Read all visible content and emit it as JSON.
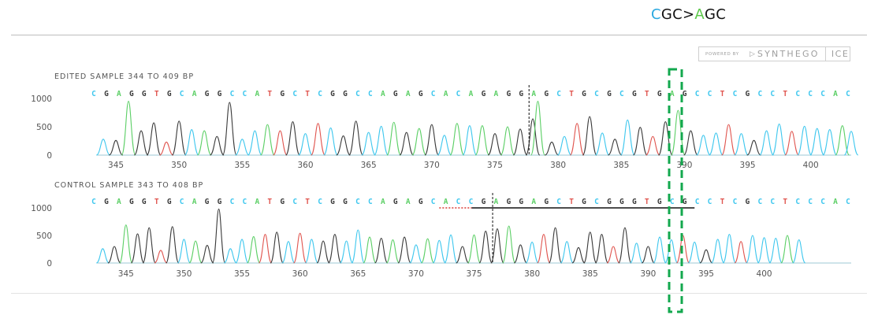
{
  "mutation_label": {
    "parts": [
      {
        "text": "C",
        "color": "#29a8e0"
      },
      {
        "text": "GC>",
        "color": "#111111"
      },
      {
        "text": "A",
        "color": "#5cc84a"
      },
      {
        "text": "GC",
        "color": "#111111"
      }
    ]
  },
  "badge": {
    "powered_by": "POWERED BY",
    "brand": "SYNTHEGO",
    "product": "ICE"
  },
  "colors": {
    "A": "#5ccf66",
    "C": "#3ec7ee",
    "G": "#3a3a3a",
    "T": "#e0554f",
    "highlight": "#13a84e"
  },
  "chart_data": [
    {
      "type": "line",
      "title": "EDITED SAMPLE 344 TO 409 BP",
      "sequence": [
        "C",
        "G",
        "A",
        "G",
        "G",
        "T",
        "G",
        "C",
        "A",
        "G",
        "G",
        "C",
        "C",
        "A",
        "T",
        "G",
        "C",
        "T",
        "C",
        "G",
        "G",
        "C",
        "C",
        "A",
        "G",
        "A",
        "G",
        "C",
        "A",
        "C",
        "A",
        "G",
        "A",
        "G",
        "G",
        "A",
        "G",
        "C",
        "T",
        "G",
        "C",
        "G",
        "C",
        "G",
        "T",
        "G",
        "A",
        "G",
        "C",
        "C",
        "T",
        "C",
        "G",
        "C",
        "C",
        "T",
        "C",
        "C",
        "C",
        "A",
        "C"
      ],
      "yticks": [
        0,
        500,
        1000
      ],
      "xticks": [
        345,
        350,
        355,
        360,
        365,
        370,
        375,
        380,
        385,
        390,
        395,
        400
      ],
      "xlim": [
        343.5,
        403.2
      ],
      "ylim": [
        0,
        1000
      ],
      "cut_site": 377.7,
      "peaks": [
        {
          "x": 344,
          "base": "C",
          "height": 280
        },
        {
          "x": 345,
          "base": "G",
          "height": 260
        },
        {
          "x": 346,
          "base": "A",
          "height": 950
        },
        {
          "x": 347,
          "base": "G",
          "height": 430
        },
        {
          "x": 348,
          "base": "G",
          "height": 570
        },
        {
          "x": 349,
          "base": "T",
          "height": 230
        },
        {
          "x": 350,
          "base": "G",
          "height": 600
        },
        {
          "x": 351,
          "base": "C",
          "height": 450
        },
        {
          "x": 352,
          "base": "A",
          "height": 430
        },
        {
          "x": 353,
          "base": "G",
          "height": 330
        },
        {
          "x": 354,
          "base": "G",
          "height": 930
        },
        {
          "x": 355,
          "base": "C",
          "height": 280
        },
        {
          "x": 356,
          "base": "C",
          "height": 430
        },
        {
          "x": 357,
          "base": "A",
          "height": 540
        },
        {
          "x": 358,
          "base": "T",
          "height": 430
        },
        {
          "x": 359,
          "base": "G",
          "height": 590
        },
        {
          "x": 360,
          "base": "C",
          "height": 380
        },
        {
          "x": 361,
          "base": "T",
          "height": 560
        },
        {
          "x": 362,
          "base": "C",
          "height": 480
        },
        {
          "x": 363,
          "base": "G",
          "height": 340
        },
        {
          "x": 364,
          "base": "G",
          "height": 600
        },
        {
          "x": 365,
          "base": "C",
          "height": 400
        },
        {
          "x": 366,
          "base": "C",
          "height": 510
        },
        {
          "x": 367,
          "base": "A",
          "height": 580
        },
        {
          "x": 368,
          "base": "G",
          "height": 400
        },
        {
          "x": 369,
          "base": "A",
          "height": 470
        },
        {
          "x": 370,
          "base": "G",
          "height": 540
        },
        {
          "x": 371,
          "base": "C",
          "height": 350
        },
        {
          "x": 372,
          "base": "A",
          "height": 560
        },
        {
          "x": 373,
          "base": "C",
          "height": 520
        },
        {
          "x": 374,
          "base": "A",
          "height": 520
        },
        {
          "x": 375,
          "base": "G",
          "height": 380
        },
        {
          "x": 376,
          "base": "A",
          "height": 500
        },
        {
          "x": 377,
          "base": "G",
          "height": 460
        },
        {
          "x": 378,
          "base": "G",
          "height": 640
        },
        {
          "x": 378.4,
          "base": "A",
          "height": 950
        },
        {
          "x": 379.5,
          "base": "G",
          "height": 230
        },
        {
          "x": 380.5,
          "base": "C",
          "height": 330
        },
        {
          "x": 381.5,
          "base": "T",
          "height": 560
        },
        {
          "x": 382.5,
          "base": "G",
          "height": 680
        },
        {
          "x": 383.5,
          "base": "C",
          "height": 390
        },
        {
          "x": 384.5,
          "base": "G",
          "height": 280
        },
        {
          "x": 385.5,
          "base": "C",
          "height": 620
        },
        {
          "x": 386.5,
          "base": "G",
          "height": 490
        },
        {
          "x": 387.5,
          "base": "T",
          "height": 330
        },
        {
          "x": 388.5,
          "base": "G",
          "height": 590
        },
        {
          "x": 389.5,
          "base": "A",
          "height": 790
        },
        {
          "x": 390.5,
          "base": "G",
          "height": 430
        },
        {
          "x": 391.5,
          "base": "C",
          "height": 350
        },
        {
          "x": 392.5,
          "base": "C",
          "height": 390
        },
        {
          "x": 393.5,
          "base": "T",
          "height": 540
        },
        {
          "x": 394.5,
          "base": "C",
          "height": 380
        },
        {
          "x": 395.5,
          "base": "G",
          "height": 260
        },
        {
          "x": 396.5,
          "base": "C",
          "height": 430
        },
        {
          "x": 397.5,
          "base": "C",
          "height": 550
        },
        {
          "x": 398.5,
          "base": "T",
          "height": 420
        },
        {
          "x": 399.5,
          "base": "C",
          "height": 510
        },
        {
          "x": 400.5,
          "base": "C",
          "height": 470
        },
        {
          "x": 401.5,
          "base": "C",
          "height": 450
        },
        {
          "x": 402.5,
          "base": "A",
          "height": 520
        },
        {
          "x": 403.2,
          "base": "C",
          "height": 420
        }
      ]
    },
    {
      "type": "line",
      "title": "CONTROL SAMPLE 343 TO 408 BP",
      "sequence": [
        "C",
        "G",
        "A",
        "G",
        "G",
        "T",
        "G",
        "C",
        "A",
        "G",
        "G",
        "C",
        "C",
        "A",
        "T",
        "G",
        "C",
        "T",
        "C",
        "G",
        "G",
        "C",
        "C",
        "A",
        "G",
        "A",
        "G",
        "C",
        "A",
        "C",
        "C",
        "G",
        "A",
        "G",
        "G",
        "A",
        "G",
        "C",
        "T",
        "G",
        "C",
        "G",
        "G",
        "G",
        "T",
        "G",
        "C",
        "G",
        "C",
        "C",
        "T",
        "C",
        "G",
        "C",
        "C",
        "T",
        "C",
        "C",
        "C",
        "A",
        "C"
      ],
      "yticks": [
        0,
        500,
        1000
      ],
      "xticks": [
        345,
        350,
        355,
        360,
        365,
        370,
        375,
        380,
        385,
        390,
        395,
        400
      ],
      "xlim": [
        342.5,
        407.5
      ],
      "ylim": [
        0,
        1000
      ],
      "cut_site": 376.6,
      "guide_start": 374.8,
      "guide_end": 394.0,
      "pam_start": 372.0,
      "pam_end": 374.8,
      "peaks": [
        {
          "x": 343,
          "base": "C",
          "height": 260
        },
        {
          "x": 344,
          "base": "G",
          "height": 300
        },
        {
          "x": 345,
          "base": "A",
          "height": 690
        },
        {
          "x": 346,
          "base": "G",
          "height": 530
        },
        {
          "x": 347,
          "base": "G",
          "height": 640
        },
        {
          "x": 348,
          "base": "T",
          "height": 230
        },
        {
          "x": 349,
          "base": "G",
          "height": 660
        },
        {
          "x": 350,
          "base": "C",
          "height": 430
        },
        {
          "x": 351,
          "base": "A",
          "height": 400
        },
        {
          "x": 352,
          "base": "G",
          "height": 320
        },
        {
          "x": 353,
          "base": "G",
          "height": 980
        },
        {
          "x": 354,
          "base": "C",
          "height": 260
        },
        {
          "x": 355,
          "base": "C",
          "height": 430
        },
        {
          "x": 356,
          "base": "A",
          "height": 480
        },
        {
          "x": 357,
          "base": "T",
          "height": 520
        },
        {
          "x": 358,
          "base": "G",
          "height": 560
        },
        {
          "x": 359,
          "base": "C",
          "height": 390
        },
        {
          "x": 360,
          "base": "T",
          "height": 540
        },
        {
          "x": 361,
          "base": "C",
          "height": 430
        },
        {
          "x": 362,
          "base": "G",
          "height": 400
        },
        {
          "x": 363,
          "base": "G",
          "height": 520
        },
        {
          "x": 364,
          "base": "C",
          "height": 400
        },
        {
          "x": 365,
          "base": "C",
          "height": 600
        },
        {
          "x": 366,
          "base": "A",
          "height": 470
        },
        {
          "x": 367,
          "base": "G",
          "height": 450
        },
        {
          "x": 368,
          "base": "A",
          "height": 420
        },
        {
          "x": 369,
          "base": "G",
          "height": 470
        },
        {
          "x": 370,
          "base": "C",
          "height": 330
        },
        {
          "x": 371,
          "base": "A",
          "height": 440
        },
        {
          "x": 372,
          "base": "C",
          "height": 410
        },
        {
          "x": 373,
          "base": "C",
          "height": 510
        },
        {
          "x": 374,
          "base": "G",
          "height": 300
        },
        {
          "x": 375,
          "base": "A",
          "height": 510
        },
        {
          "x": 376,
          "base": "G",
          "height": 580
        },
        {
          "x": 377,
          "base": "G",
          "height": 620
        },
        {
          "x": 378,
          "base": "A",
          "height": 670
        },
        {
          "x": 379,
          "base": "G",
          "height": 330
        },
        {
          "x": 380,
          "base": "C",
          "height": 380
        },
        {
          "x": 381,
          "base": "T",
          "height": 520
        },
        {
          "x": 382,
          "base": "G",
          "height": 640
        },
        {
          "x": 383,
          "base": "C",
          "height": 390
        },
        {
          "x": 384,
          "base": "G",
          "height": 280
        },
        {
          "x": 385,
          "base": "G",
          "height": 560
        },
        {
          "x": 386,
          "base": "G",
          "height": 520
        },
        {
          "x": 387,
          "base": "T",
          "height": 300
        },
        {
          "x": 388,
          "base": "G",
          "height": 640
        },
        {
          "x": 389,
          "base": "C",
          "height": 360
        },
        {
          "x": 390,
          "base": "G",
          "height": 300
        },
        {
          "x": 391,
          "base": "C",
          "height": 470
        },
        {
          "x": 392,
          "base": "C",
          "height": 420
        },
        {
          "x": 393,
          "base": "T",
          "height": 500
        },
        {
          "x": 394,
          "base": "C",
          "height": 380
        },
        {
          "x": 395,
          "base": "G",
          "height": 240
        },
        {
          "x": 396,
          "base": "C",
          "height": 430
        },
        {
          "x": 397,
          "base": "C",
          "height": 520
        },
        {
          "x": 398,
          "base": "T",
          "height": 390
        },
        {
          "x": 399,
          "base": "C",
          "height": 500
        },
        {
          "x": 400,
          "base": "C",
          "height": 460
        },
        {
          "x": 401,
          "base": "C",
          "height": 450
        },
        {
          "x": 402,
          "base": "A",
          "height": 500
        },
        {
          "x": 403,
          "base": "C",
          "height": 420
        }
      ]
    }
  ]
}
